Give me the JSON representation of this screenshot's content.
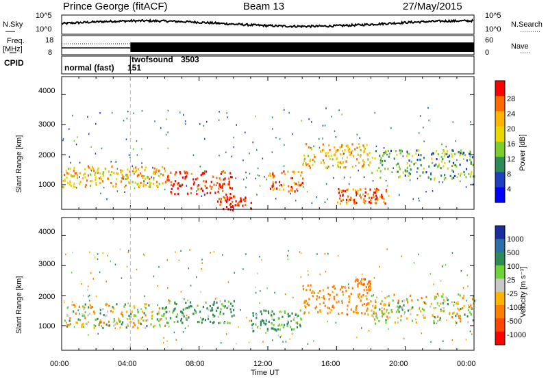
{
  "header": {
    "station": "Prince George (fitACF)",
    "beam": "Beam 13",
    "date": "27/May/2015"
  },
  "noise_panel": {
    "left_label": "N.Sky",
    "left_ticks": [
      "10^5",
      "10^0"
    ],
    "right_label": "N.Search",
    "right_ticks": [
      "10^5",
      "10^0"
    ]
  },
  "freq_panel": {
    "left_label_line1": "Freq.",
    "left_label_line2": "[MHz]",
    "left_ticks": [
      "18",
      "8"
    ],
    "right_label": "Nave",
    "right_ticks": [
      "60",
      "0"
    ]
  },
  "cpid_panel": {
    "label": "CPID",
    "modes": [
      {
        "name": "normal (fast)",
        "id": "151",
        "start_hour": 0
      },
      {
        "name": "twofsound",
        "id": "3503",
        "start_hour": 4
      }
    ]
  },
  "power_panel": {
    "ylabel": "Slant Range [km]",
    "yticks": [
      "4000",
      "3000",
      "2000",
      "1000"
    ],
    "colorbar_label": "Power [dB]",
    "colorbar_ticks": [
      "28",
      "24",
      "20",
      "16",
      "12",
      "8",
      "4"
    ],
    "colorbar_colors": [
      "#ff0000",
      "#ff6a00",
      "#ffb400",
      "#e8d800",
      "#7ccd2e",
      "#2e8b57",
      "#1e3fbf",
      "#0000ff"
    ]
  },
  "velocity_panel": {
    "ylabel": "Slant Range [km]",
    "yticks": [
      "4000",
      "3000",
      "2000",
      "1000"
    ],
    "colorbar_label": "Velocity [m s⁻¹]",
    "colorbar_ticks": [
      "1000",
      "500",
      "100",
      "25",
      "-25",
      "-100",
      "-500",
      "-1000"
    ],
    "colorbar_colors": [
      "#1a2f9c",
      "#2e6fa8",
      "#2e8b57",
      "#6fd23a",
      "#c8c8c8",
      "#ffb400",
      "#ff7f00",
      "#ff4500",
      "#ff0000"
    ]
  },
  "xaxis": {
    "label": "Time UT",
    "ticks": [
      "00:00",
      "04:00",
      "08:00",
      "12:00",
      "16:00",
      "20:00",
      "00:00"
    ]
  },
  "chart_data": {
    "type": "heatmap",
    "x_range_hours": [
      0,
      24
    ],
    "y_range_km": [
      180,
      4600
    ],
    "panels": [
      {
        "name": "Power",
        "units": "dB",
        "clim": [
          0,
          30
        ],
        "features": [
          {
            "t_start": 0,
            "t_end": 6,
            "range_km": 1300,
            "thickness_km": 350,
            "value": 20
          },
          {
            "t_start": 6,
            "t_end": 10,
            "range_km": 1100,
            "thickness_km": 400,
            "value": 28
          },
          {
            "t_start": 9,
            "t_end": 11,
            "range_km": 400,
            "thickness_km": 250,
            "value": 28
          },
          {
            "t_start": 12,
            "t_end": 14,
            "range_km": 1150,
            "thickness_km": 350,
            "value": 24
          },
          {
            "t_start": 14,
            "t_end": 18,
            "range_km": 2000,
            "thickness_km": 400,
            "value": 20
          },
          {
            "t_start": 16,
            "t_end": 19,
            "range_km": 650,
            "thickness_km": 250,
            "value": 24
          },
          {
            "t_start": 18,
            "t_end": 24,
            "range_km": 1700,
            "thickness_km": 500,
            "value": 12
          }
        ]
      },
      {
        "name": "Velocity",
        "units": "m/s",
        "clim": [
          -1000,
          1000
        ],
        "features": [
          {
            "t_start": 0,
            "t_end": 6,
            "range_km": 1350,
            "thickness_km": 400,
            "value": 0
          },
          {
            "t_start": 6,
            "t_end": 10,
            "range_km": 1500,
            "thickness_km": 400,
            "value": 150
          },
          {
            "t_start": 11,
            "t_end": 14,
            "range_km": 1200,
            "thickness_km": 350,
            "value": 150
          },
          {
            "t_start": 14,
            "t_end": 18,
            "range_km": 1900,
            "thickness_km": 500,
            "value": -200
          },
          {
            "t_start": 17,
            "t_end": 18,
            "range_km": 2400,
            "thickness_km": 200,
            "value": -400
          },
          {
            "t_start": 18,
            "t_end": 24,
            "range_km": 1600,
            "thickness_km": 500,
            "value": 0
          }
        ]
      }
    ]
  }
}
